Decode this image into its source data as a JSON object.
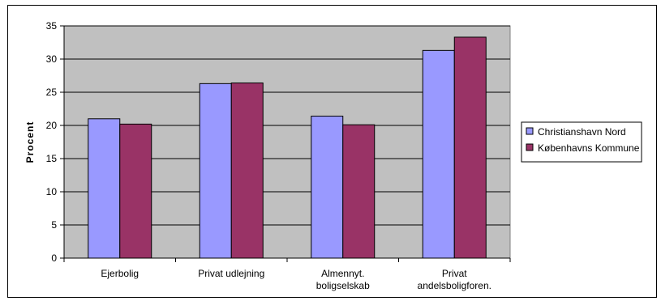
{
  "chart_data": {
    "type": "bar",
    "categories": [
      [
        "Ejerbolig"
      ],
      [
        "Privat udlejning"
      ],
      [
        "Almennyt.",
        "boligselskab"
      ],
      [
        "Privat",
        "andelsboligforen."
      ]
    ],
    "series": [
      {
        "name": "Christianshavn Nord",
        "values": [
          21.0,
          26.3,
          21.4,
          31.3
        ],
        "color": "#9999ff"
      },
      {
        "name": "Københavns Kommune",
        "values": [
          20.2,
          26.4,
          20.1,
          33.3
        ],
        "color": "#993366"
      }
    ],
    "ylabel": "Procent",
    "xlabel": "",
    "ylim": [
      0,
      35
    ],
    "yticks": [
      0,
      5,
      10,
      15,
      20,
      25,
      30,
      35
    ],
    "grid": true,
    "plot_background": "#c0c0c0",
    "legend_position": "right"
  }
}
